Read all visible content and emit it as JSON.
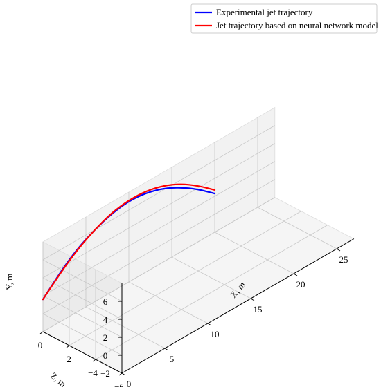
{
  "chart_data": {
    "type": "line3d",
    "xlabel": "X, m",
    "ylabel": "Y, m",
    "zlabel": "Z, m",
    "xlim": [
      0,
      27
    ],
    "ylim": [
      -2,
      8
    ],
    "zlim": [
      -6,
      0
    ],
    "xticks": [
      0,
      5,
      10,
      15,
      20,
      25
    ],
    "yticks": [
      -2,
      0,
      2,
      4,
      6
    ],
    "zticks": [
      0,
      -2,
      -4,
      -6
    ],
    "grid": true,
    "legend_position": "top-right",
    "series": [
      {
        "name": "Experimental jet trajectory",
        "color": "#0000ff",
        "points": [
          [
            0,
            1.6
          ],
          [
            2,
            3.5
          ],
          [
            4,
            5.0
          ],
          [
            6,
            6.0
          ],
          [
            8,
            6.7
          ],
          [
            10,
            7.0
          ],
          [
            12,
            6.8
          ],
          [
            14,
            6.2
          ],
          [
            16,
            5.2
          ],
          [
            18,
            3.9
          ],
          [
            20,
            2.3
          ]
        ]
      },
      {
        "name": "Jet trajectory based on neural network model",
        "color": "#ff0000",
        "points": [
          [
            0,
            1.6
          ],
          [
            2,
            3.4
          ],
          [
            4,
            4.9
          ],
          [
            6,
            6.0
          ],
          [
            8,
            6.8
          ],
          [
            10,
            7.1
          ],
          [
            12,
            7.0
          ],
          [
            14,
            6.5
          ],
          [
            16,
            5.6
          ],
          [
            18,
            4.3
          ],
          [
            20,
            2.7
          ]
        ]
      }
    ]
  }
}
